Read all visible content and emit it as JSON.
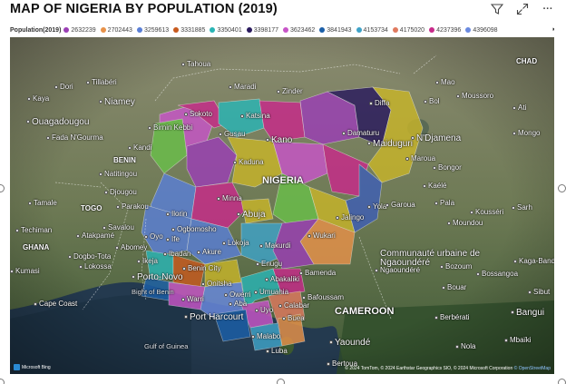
{
  "title": "MAP OF NIGERIA BY POPULATION (2019)",
  "toolbar": {
    "filter_icon": "filter-icon",
    "focus_icon": "focus-mode-icon",
    "more_icon": "more-options-icon",
    "more_label": "···"
  },
  "legend": {
    "title": "Population(2019)",
    "more_label": "▸",
    "items": [
      {
        "label": "2632239",
        "color": "#9b3fb5"
      },
      {
        "label": "2702443",
        "color": "#e8924a"
      },
      {
        "label": "3259613",
        "color": "#5a7fd6"
      },
      {
        "label": "3331885",
        "color": "#c85a1e"
      },
      {
        "label": "3350401",
        "color": "#2ab5b5"
      },
      {
        "label": "3398177",
        "color": "#2a1a5e"
      },
      {
        "label": "3623462",
        "color": "#c855c8"
      },
      {
        "label": "3841943",
        "color": "#1b5fa8"
      },
      {
        "label": "4153734",
        "color": "#3fa3c8"
      },
      {
        "label": "4175020",
        "color": "#e07a5f"
      },
      {
        "label": "4237396",
        "color": "#c82a8a"
      },
      {
        "label": "4396098",
        "color": "#6a8ae0"
      }
    ]
  },
  "map": {
    "places": [
      {
        "name": "Tahoua"
      },
      {
        "name": "Maradi"
      },
      {
        "name": "Zinder"
      },
      {
        "name": "Tillabéri"
      },
      {
        "name": "Dori"
      },
      {
        "name": "Kaya"
      },
      {
        "name": "Niamey"
      },
      {
        "name": "Ouagadougou"
      },
      {
        "name": "Fada N'Gourma"
      },
      {
        "name": "Birnin Kebbi"
      },
      {
        "name": "Sokoto"
      },
      {
        "name": "Katsina"
      },
      {
        "name": "Kano"
      },
      {
        "name": "Gusau"
      },
      {
        "name": "Kaduna"
      },
      {
        "name": "Diffa"
      },
      {
        "name": "Bol"
      },
      {
        "name": "Mao"
      },
      {
        "name": "Moussoro"
      },
      {
        "name": "Ati"
      },
      {
        "name": "Mongo"
      },
      {
        "name": "Damaturu"
      },
      {
        "name": "Maiduguri"
      },
      {
        "name": "N'Djamena"
      },
      {
        "name": "Kandi"
      },
      {
        "name": "Natitingou"
      },
      {
        "name": "Djougou"
      },
      {
        "name": "Parakou"
      },
      {
        "name": "Tamale"
      },
      {
        "name": "Techiman"
      },
      {
        "name": "Atakpamé"
      },
      {
        "name": "Savalou"
      },
      {
        "name": "Abomey"
      },
      {
        "name": "Kumasi"
      },
      {
        "name": "Dogbo-Tota"
      },
      {
        "name": "Lokossa"
      },
      {
        "name": "Porto-Novo"
      },
      {
        "name": "Cape Coast"
      },
      {
        "name": "Ilorin"
      },
      {
        "name": "Ogbomosho"
      },
      {
        "name": "Oyo"
      },
      {
        "name": "Ife"
      },
      {
        "name": "Ibadan"
      },
      {
        "name": "Ikeja"
      },
      {
        "name": "Akure"
      },
      {
        "name": "Benin City"
      },
      {
        "name": "Minna"
      },
      {
        "name": "Abuja"
      },
      {
        "name": "Lokoja"
      },
      {
        "name": "Makurdi"
      },
      {
        "name": "Wukari"
      },
      {
        "name": "Jalingo"
      },
      {
        "name": "Yola"
      },
      {
        "name": "Garoua"
      },
      {
        "name": "Maroua"
      },
      {
        "name": "Bongor"
      },
      {
        "name": "Kaélé"
      },
      {
        "name": "Pala"
      },
      {
        "name": "Kousséri"
      },
      {
        "name": "Moundou"
      },
      {
        "name": "Sarh"
      },
      {
        "name": "Enugu"
      },
      {
        "name": "Abakaliki"
      },
      {
        "name": "Onitsha"
      },
      {
        "name": "Owerri"
      },
      {
        "name": "Umuahia"
      },
      {
        "name": "Aba"
      },
      {
        "name": "Uyo"
      },
      {
        "name": "Calabar"
      },
      {
        "name": "Warri"
      },
      {
        "name": "Port Harcourt"
      },
      {
        "name": "Bamenda"
      },
      {
        "name": "Bafoussam"
      },
      {
        "name": "Buea"
      },
      {
        "name": "Malabo"
      },
      {
        "name": "Luba"
      },
      {
        "name": "Yaoundé"
      },
      {
        "name": "Ngaoundéré"
      },
      {
        "name": "Bozoum"
      },
      {
        "name": "Bossangoa"
      },
      {
        "name": "Bouar"
      },
      {
        "name": "Kaga-Bandoro"
      },
      {
        "name": "Sibut"
      },
      {
        "name": "Bangui"
      },
      {
        "name": "Berbérati"
      },
      {
        "name": "Nola"
      },
      {
        "name": "Mbaïki"
      },
      {
        "name": "Bertoua"
      }
    ],
    "countries": [
      {
        "name": "NIGERIA"
      },
      {
        "name": "BENIN"
      },
      {
        "name": "TOGO"
      },
      {
        "name": "GHANA"
      },
      {
        "name": "CHAD"
      },
      {
        "name": "CAMEROON"
      }
    ],
    "regions": [
      {
        "name": "Communauté urbaine de"
      },
      {
        "name": "Ngaoundéré"
      }
    ],
    "seas": [
      {
        "name": "Bight of Benin"
      },
      {
        "name": "Gulf of Guinea"
      }
    ],
    "attribution": {
      "logo_text": "Microsoft Bing",
      "copyright": "© 2024 TomTom, © 2024 Earthstar Geographics SIO, © 2024 Microsoft Corporation",
      "osm": "© OpenStreetMap"
    }
  }
}
